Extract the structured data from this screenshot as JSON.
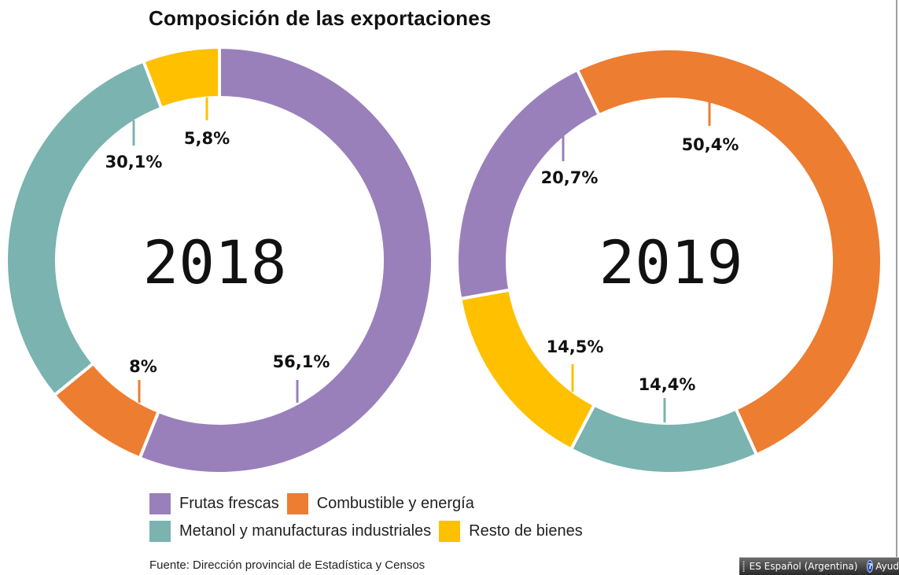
{
  "chart_data": [
    {
      "type": "pie",
      "subtype": "donut",
      "title": "Composición de las exportaciones",
      "center_label": "2018",
      "start_angle_deg": 0,
      "direction": "clockwise",
      "slices": [
        {
          "category": "Frutas frescas",
          "value": 56.1,
          "label": "56,1%",
          "color": "#9a80ba"
        },
        {
          "category": "Combustible y energía",
          "value": 8.0,
          "label": "8%",
          "color": "#ed7d31"
        },
        {
          "category": "Metanol y manufacturas industriales",
          "value": 30.1,
          "label": "30,1%",
          "color": "#7ab3b0"
        },
        {
          "category": "Resto de bienes",
          "value": 5.8,
          "label": "5,8%",
          "color": "#ffc000"
        }
      ]
    },
    {
      "type": "pie",
      "subtype": "donut",
      "title": "Composición de las exportaciones",
      "center_label": "2019",
      "start_angle_deg": -25.7,
      "direction": "clockwise",
      "slices": [
        {
          "category": "Combustible y energía",
          "value": 50.4,
          "label": "50,4%",
          "color": "#ed7d31"
        },
        {
          "category": "Metanol y manufacturas industriales",
          "value": 14.4,
          "label": "14,4%",
          "color": "#7ab3b0"
        },
        {
          "category": "Resto de bienes",
          "value": 14.5,
          "label": "14,5%",
          "color": "#ffc000"
        },
        {
          "category": "Frutas frescas",
          "value": 20.7,
          "label": "20,7%",
          "color": "#9a80ba"
        }
      ]
    }
  ],
  "title": "Composición de las exportaciones",
  "legend": {
    "rows": [
      [
        {
          "label": "Frutas frescas",
          "color": "#9a80ba"
        },
        {
          "label": "Combustible y energía",
          "color": "#ed7d31"
        }
      ],
      [
        {
          "label": "Metanol y manufacturas industriales",
          "color": "#7ab3b0"
        },
        {
          "label": "Resto de bienes",
          "color": "#ffc000"
        }
      ]
    ]
  },
  "source": "Fuente: Dirección provincial de Estadística y Censos",
  "taskbar": {
    "language": "ES Español (Argentina)",
    "help_label": "Ayud",
    "help_icon": "help-icon"
  }
}
